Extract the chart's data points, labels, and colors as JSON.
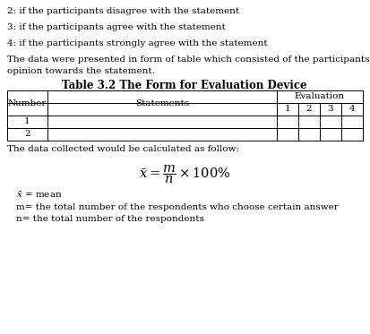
{
  "title": "Table 3.2 The Form for Evaluation Device",
  "line1": "2: if the participants disagree with the statement",
  "line2": "3: if the participants agree with the statement",
  "line3": "4: if the participants strongly agree with the statement",
  "line4": "The data were presented in form of table which consisted of the participants’",
  "line5": "opinion towards the statement.",
  "line6": "The data collected would be calculated as follow:",
  "line8": "m= the total number of the respondents who choose certain answer",
  "line9": "n= the total number of the respondents",
  "eval_subheaders": [
    "1",
    "2",
    "3",
    "4"
  ],
  "bg_color": "#ffffff",
  "text_color": "#000000",
  "table_border_color": "#000000",
  "font_size": 7.5,
  "title_font_size": 8.5
}
